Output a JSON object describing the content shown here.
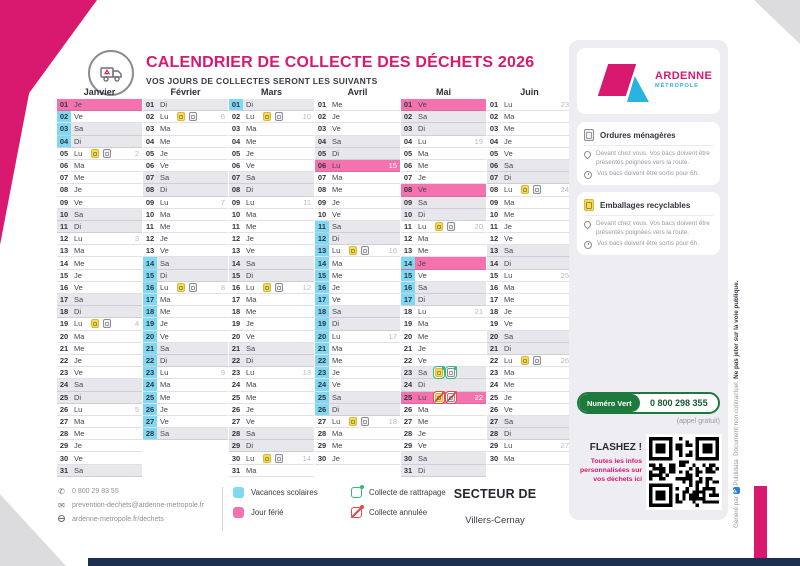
{
  "header": {
    "title": "CALENDRIER DE COLLECTE DES DÉCHETS 2026",
    "subtitle": "VOS JOURS DE COLLECTES SERONT LES SUIVANTS"
  },
  "calendar": {
    "weekday_labels": [
      "Lu",
      "Ma",
      "Me",
      "Je",
      "Ve",
      "Sa",
      "Di"
    ],
    "months": [
      {
        "name": "Janvier",
        "days": 31,
        "first_weekday": 3,
        "holidays": [
          1
        ],
        "vacation_days": [
          2,
          3,
          4
        ],
        "collections": [
          5,
          19
        ],
        "weeks": {
          "5": "2",
          "12": "3",
          "19": "4",
          "26": "5"
        }
      },
      {
        "name": "Février",
        "days": 28,
        "first_weekday": 6,
        "holidays": [],
        "vacation_days": [
          14,
          15,
          16,
          17,
          18,
          19,
          20,
          21,
          22,
          23,
          24,
          25,
          26,
          27,
          28
        ],
        "collections": [
          2,
          16
        ],
        "weeks": {
          "2": "6",
          "9": "7",
          "16": "8",
          "23": "9"
        }
      },
      {
        "name": "Mars",
        "days": 31,
        "first_weekday": 6,
        "holidays": [],
        "vacation_days": [
          1
        ],
        "collections": [
          2,
          16,
          30
        ],
        "weeks": {
          "2": "10",
          "9": "11",
          "16": "12",
          "23": "13",
          "30": "14"
        }
      },
      {
        "name": "Avril",
        "days": 30,
        "first_weekday": 2,
        "holidays": [
          6
        ],
        "vacation_days": [
          11,
          12,
          13,
          14,
          15,
          16,
          17,
          18,
          19,
          20,
          21,
          22,
          23,
          24,
          25,
          26
        ],
        "collections": [
          13,
          27
        ],
        "weeks": {
          "6": "15",
          "13": "16",
          "20": "17",
          "27": "18"
        }
      },
      {
        "name": "Mai",
        "days": 31,
        "first_weekday": 4,
        "holidays": [
          1,
          8,
          14,
          25
        ],
        "vacation_days": [
          14,
          15,
          16,
          17
        ],
        "collections": [
          11
        ],
        "rattrapage": [
          23
        ],
        "annulee": [
          25
        ],
        "weeks": {
          "4": "19",
          "11": "20",
          "18": "21",
          "25": "22"
        }
      },
      {
        "name": "Juin",
        "days": 30,
        "first_weekday": 0,
        "holidays": [],
        "vacation_days": [],
        "collections": [
          8,
          22
        ],
        "weeks": {
          "1": "23",
          "8": "24",
          "15": "25",
          "22": "26",
          "29": "27"
        }
      }
    ]
  },
  "sidebar": {
    "logo": {
      "line1": "ARDENNE",
      "line2": "MÉTROPOLE"
    },
    "cards": [
      {
        "title": "Ordures ménagères",
        "lines": [
          {
            "text": "Devant chez vous. Vos bacs doivent être présentés poignées vers la route."
          },
          {
            "text": "Vos bacs doivent être sortis pour 6h."
          }
        ]
      },
      {
        "title": "Emballages recyclables",
        "lines": [
          {
            "text": "Devant chez vous. Vos bacs doivent être présentés poignées vers la route."
          },
          {
            "text": "Vos bacs doivent être sortis pour 6h."
          }
        ]
      }
    ],
    "numero_vert": {
      "label": "Numéro Vert",
      "number": "0 800 298 355",
      "note": "(appel gratuit)"
    },
    "flashez": {
      "title": "FLASHEZ !",
      "text": "Toutes les infos personnalisées sur vos déchets ici"
    }
  },
  "side_note": {
    "generated_by": "Généré par",
    "brand": "Publidata.",
    "middle": "Document non contractuel.",
    "bold": "Ne pas jeter sur la voie publique."
  },
  "footer": {
    "contacts": [
      {
        "icon": "phone-icon",
        "text": "0 800 29 83 55"
      },
      {
        "icon": "mail-icon",
        "text": "prevention-dechets@ardenne-metropole.fr"
      },
      {
        "icon": "globe-icon",
        "text": "ardenne-metropole.fr/dechets"
      }
    ],
    "legend": [
      {
        "label": "Vacances scolaires"
      },
      {
        "label": "Collecte de rattrapage"
      },
      {
        "label": "Jour férié"
      },
      {
        "label": "Collecte annulée"
      }
    ],
    "secteur": {
      "label": "SECTEUR DE",
      "value": "Villers-Cernay"
    }
  },
  "colors": {
    "accent_pink": "#d9186f",
    "holiday_row": "#f473ae",
    "vacation_blue": "#7fd9f2",
    "weekend_gray": "#e7e7ec",
    "green": "#35b877",
    "red": "#e04b4b",
    "navy": "#1c2f4e",
    "yellow_bin": "#f8db4f"
  }
}
